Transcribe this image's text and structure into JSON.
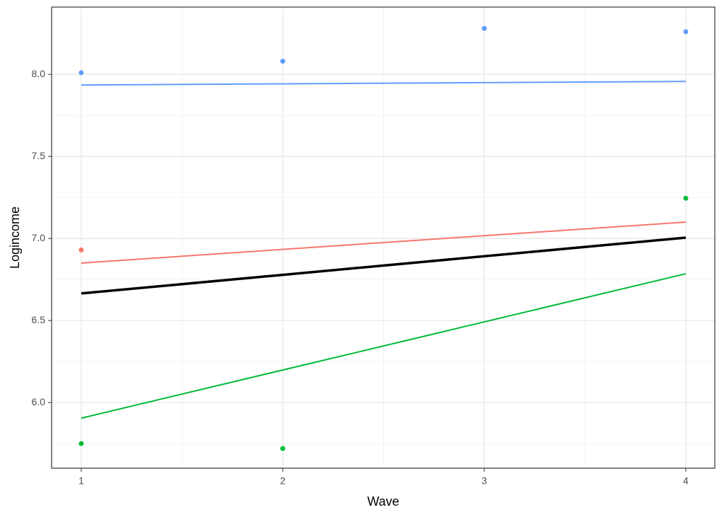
{
  "chart_data": {
    "type": "line",
    "x_label": "Wave",
    "y_label": "Logincome",
    "xlim": [
      0.853,
      4.144
    ],
    "ylim": [
      5.6,
      8.41
    ],
    "xticks": [
      1,
      2,
      3,
      4
    ],
    "yticks": [
      {
        "value": 6,
        "label": "6.0"
      },
      {
        "value": 6.5,
        "label": "6.5"
      },
      {
        "value": 7,
        "label": "7.0"
      },
      {
        "value": 7.5,
        "label": "7.5"
      },
      {
        "value": 8,
        "label": "8.0"
      }
    ],
    "grid": true,
    "series": [
      {
        "style": "points",
        "color": "#619CFF",
        "x": [
          1,
          2,
          3,
          4
        ],
        "values": [
          8.01,
          8.08,
          8.28,
          8.26
        ]
      },
      {
        "style": "points",
        "color": "#F8766D",
        "x": [
          1
        ],
        "values": [
          6.93
        ]
      },
      {
        "style": "points",
        "color": "#00BA38",
        "x": [
          1,
          2,
          4
        ],
        "values": [
          5.75,
          5.72,
          7.245
        ]
      },
      {
        "style": "line",
        "color": "#619CFF",
        "x": [
          1,
          4
        ],
        "values": [
          7.935,
          7.957
        ]
      },
      {
        "style": "line",
        "color": "#F8766D",
        "x": [
          1,
          4
        ],
        "values": [
          6.85,
          7.1
        ]
      },
      {
        "style": "line",
        "color": "#00BA38",
        "x": [
          1,
          4
        ],
        "values": [
          5.905,
          6.785
        ]
      },
      {
        "style": "thick-line",
        "color": "#000000",
        "x": [
          1,
          4
        ],
        "values": [
          6.665,
          7.005
        ]
      }
    ]
  }
}
